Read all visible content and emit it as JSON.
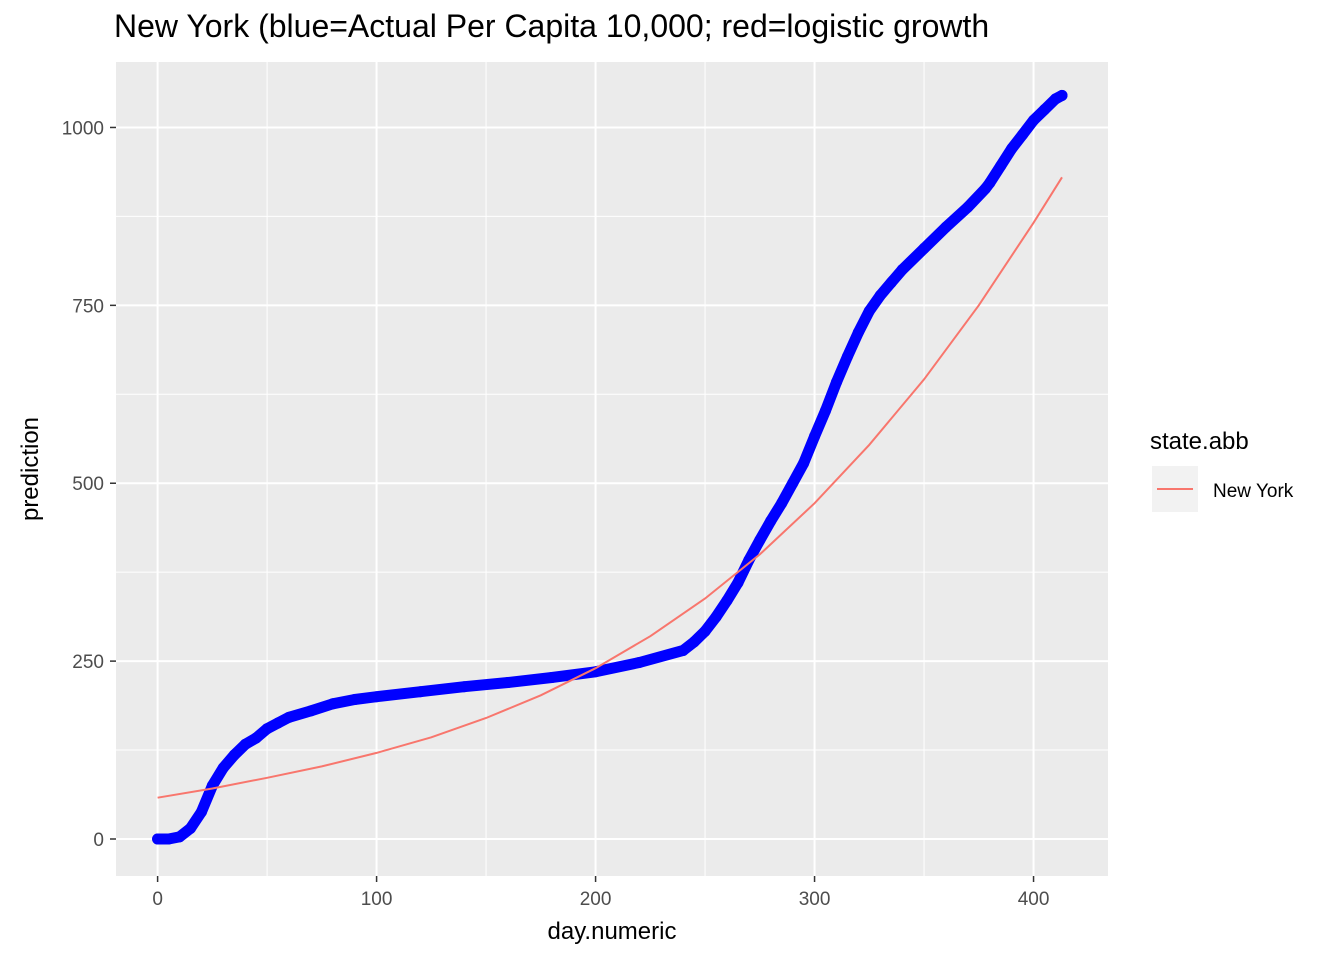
{
  "chart_data": {
    "type": "line",
    "title": "New York (blue=Actual Per Capita 10,000; red=logistic growth",
    "xlabel": "day.numeric",
    "ylabel": "prediction",
    "xlim": [
      -19,
      434
    ],
    "ylim": [
      -52,
      1092
    ],
    "x_ticks": [
      0,
      100,
      200,
      300,
      400
    ],
    "y_ticks": [
      0,
      250,
      500,
      750,
      1000
    ],
    "grid": true,
    "legend": {
      "title": "state.abb",
      "position": "right",
      "entries": [
        "New York"
      ]
    },
    "colors": {
      "actual": "#0000ff",
      "logistic": "#f8766d",
      "panel": "#ebebeb",
      "grid": "#ffffff"
    },
    "series": [
      {
        "style": "points",
        "color": "#0000ff",
        "x": [
          0,
          5,
          10,
          15,
          20,
          25,
          30,
          35,
          40,
          45,
          50,
          55,
          60,
          70,
          80,
          90,
          100,
          120,
          140,
          160,
          180,
          200,
          220,
          240,
          245,
          250,
          255,
          260,
          265,
          270,
          275,
          280,
          285,
          290,
          295,
          300,
          305,
          310,
          315,
          320,
          325,
          330,
          335,
          340,
          350,
          360,
          370,
          378,
          380,
          385,
          390,
          395,
          400,
          405,
          410,
          413
        ],
        "y": [
          0,
          0,
          3,
          15,
          38,
          75,
          100,
          118,
          133,
          142,
          155,
          163,
          171,
          180,
          190,
          196,
          200,
          207,
          214,
          220,
          227,
          235,
          248,
          265,
          277,
          292,
          312,
          335,
          360,
          392,
          420,
          447,
          472,
          500,
          528,
          566,
          602,
          642,
          678,
          712,
          742,
          764,
          782,
          800,
          830,
          860,
          888,
          914,
          922,
          946,
          970,
          990,
          1010,
          1025,
          1040,
          1045
        ]
      },
      {
        "name": "New York",
        "style": "line",
        "color": "#f8766d",
        "x": [
          0,
          25,
          50,
          75,
          100,
          125,
          150,
          175,
          200,
          225,
          250,
          275,
          300,
          325,
          350,
          375,
          400,
          413
        ],
        "y": [
          58,
          71,
          86,
          102,
          121,
          143,
          170,
          202,
          240,
          285,
          338,
          400,
          472,
          554,
          646,
          750,
          866,
          930
        ]
      }
    ]
  }
}
